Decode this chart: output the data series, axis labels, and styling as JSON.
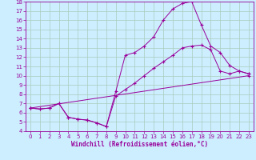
{
  "bg_color": "#cceeff",
  "grid_color": "#aaccbb",
  "line_color": "#990099",
  "xlim": [
    -0.5,
    23.5
  ],
  "ylim": [
    4,
    18
  ],
  "xticks": [
    0,
    1,
    2,
    3,
    4,
    5,
    6,
    7,
    8,
    9,
    10,
    11,
    12,
    13,
    14,
    15,
    16,
    17,
    18,
    19,
    20,
    21,
    22,
    23
  ],
  "yticks": [
    4,
    5,
    6,
    7,
    8,
    9,
    10,
    11,
    12,
    13,
    14,
    15,
    16,
    17,
    18
  ],
  "xlabel": "Windchill (Refroidissement éolien,°C)",
  "line1_x": [
    0,
    1,
    2,
    3,
    4,
    5,
    6,
    7,
    8,
    9,
    10,
    11,
    12,
    13,
    14,
    15,
    16,
    17,
    18,
    19,
    20,
    21,
    22,
    23
  ],
  "line1_y": [
    6.5,
    6.4,
    6.5,
    7.0,
    5.5,
    5.3,
    5.2,
    4.9,
    4.5,
    8.3,
    12.2,
    12.5,
    13.2,
    14.2,
    16.0,
    17.2,
    17.8,
    18.0,
    15.5,
    13.2,
    12.5,
    11.1,
    10.5,
    10.2
  ],
  "line2_x": [
    0,
    1,
    2,
    3,
    4,
    5,
    6,
    7,
    8,
    9,
    10,
    11,
    12,
    13,
    14,
    15,
    16,
    17,
    18,
    19,
    20,
    21,
    22,
    23
  ],
  "line2_y": [
    6.5,
    6.4,
    6.5,
    7.0,
    5.5,
    5.3,
    5.2,
    4.9,
    4.5,
    7.8,
    8.5,
    9.2,
    10.0,
    10.8,
    11.5,
    12.2,
    13.0,
    13.2,
    13.3,
    12.8,
    10.5,
    10.2,
    10.5,
    10.2
  ],
  "line3_x": [
    0,
    23
  ],
  "line3_y": [
    6.5,
    10.0
  ]
}
